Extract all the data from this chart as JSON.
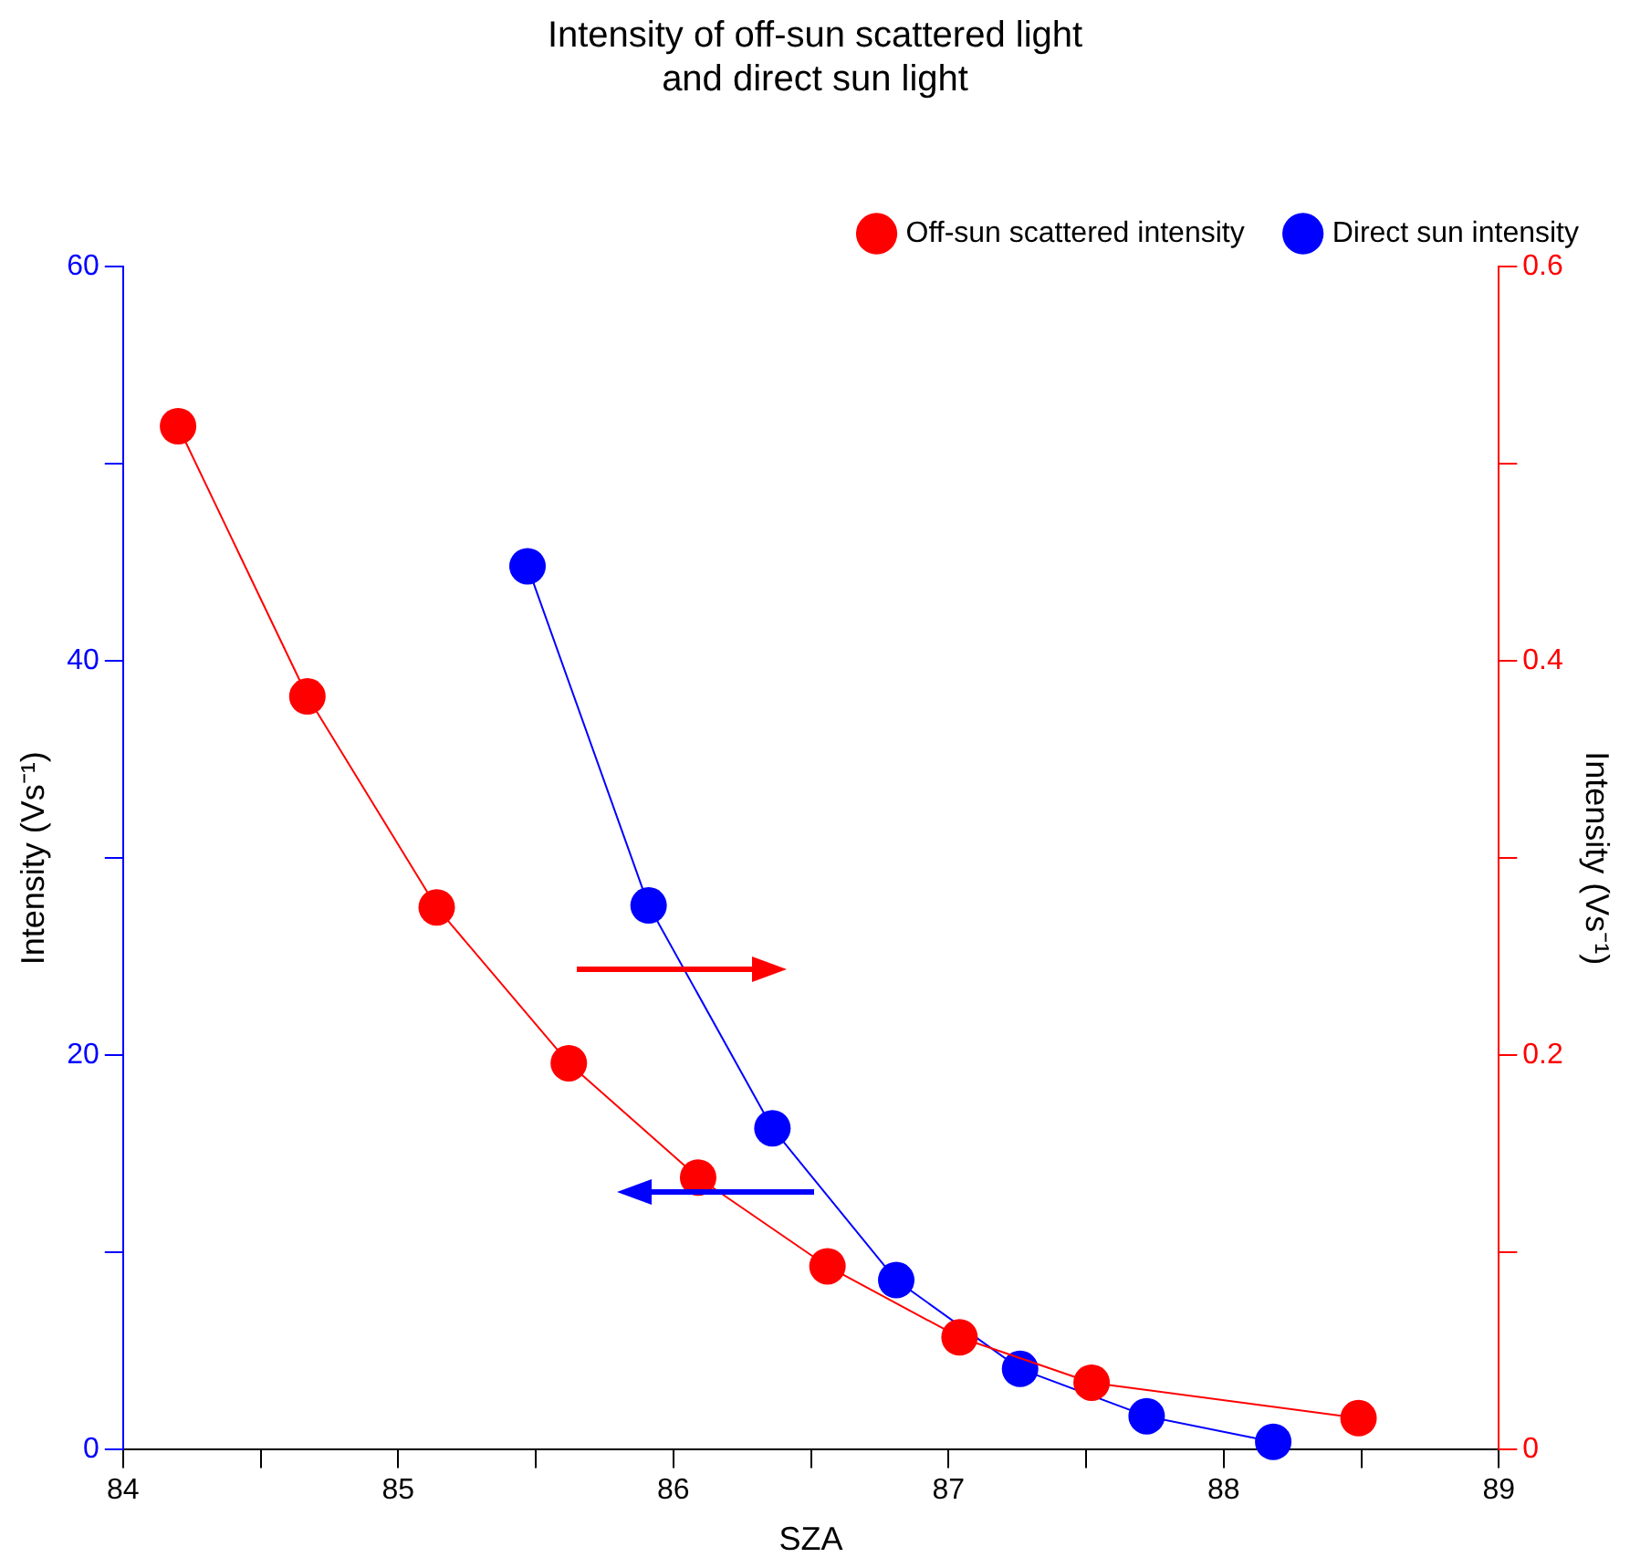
{
  "chart_data": {
    "type": "line",
    "title": "Intensity of off-sun scattered light\nand direct sun light",
    "xlabel": "SZA",
    "ylabel": "Intensity (Vs⁻¹)",
    "y2label": "Intensity (Vs⁻¹)",
    "xlim": [
      84,
      89
    ],
    "xticks": [
      84,
      {
        "value": 84.5,
        "label": null
      },
      85,
      {
        "value": 85.5,
        "label": null
      },
      86,
      {
        "value": 86.5,
        "label": null
      },
      87,
      {
        "value": 87.5,
        "label": null
      },
      88,
      {
        "value": 88.5,
        "label": null
      },
      89
    ],
    "ylim": [
      0,
      60
    ],
    "yticks": [
      0,
      {
        "value": 10,
        "label": null
      },
      20,
      {
        "value": 30,
        "label": null
      },
      40,
      {
        "value": 50,
        "label": null
      },
      60
    ],
    "y2lim": [
      0,
      0.6
    ],
    "y2ticks": [
      0,
      {
        "value": 0.1,
        "label": null
      },
      0.2,
      {
        "value": 0.3,
        "label": null
      },
      0.4,
      {
        "value": 0.5,
        "label": null
      },
      0.6
    ],
    "legend": "top right",
    "marker": "circle",
    "line_style": "solid",
    "series": [
      {
        "name": "Off-sun scattered intensity",
        "color": "#ff0000",
        "axis": "y2",
        "x": [
          84.2,
          84.67,
          85.14,
          85.62,
          86.09,
          86.56,
          87.04,
          87.52,
          88.49
        ],
        "values": [
          0.519,
          0.382,
          0.275,
          0.196,
          0.138,
          0.093,
          0.057,
          0.034,
          0.016
        ]
      },
      {
        "name": "Direct sun intensity",
        "color": "#0000ff",
        "x": [
          85.47,
          85.91,
          86.36,
          86.81,
          87.26,
          87.72,
          88.18
        ],
        "values": [
          44.8,
          27.6,
          16.3,
          8.6,
          4.1,
          1.7,
          0.4
        ]
      }
    ]
  }
}
